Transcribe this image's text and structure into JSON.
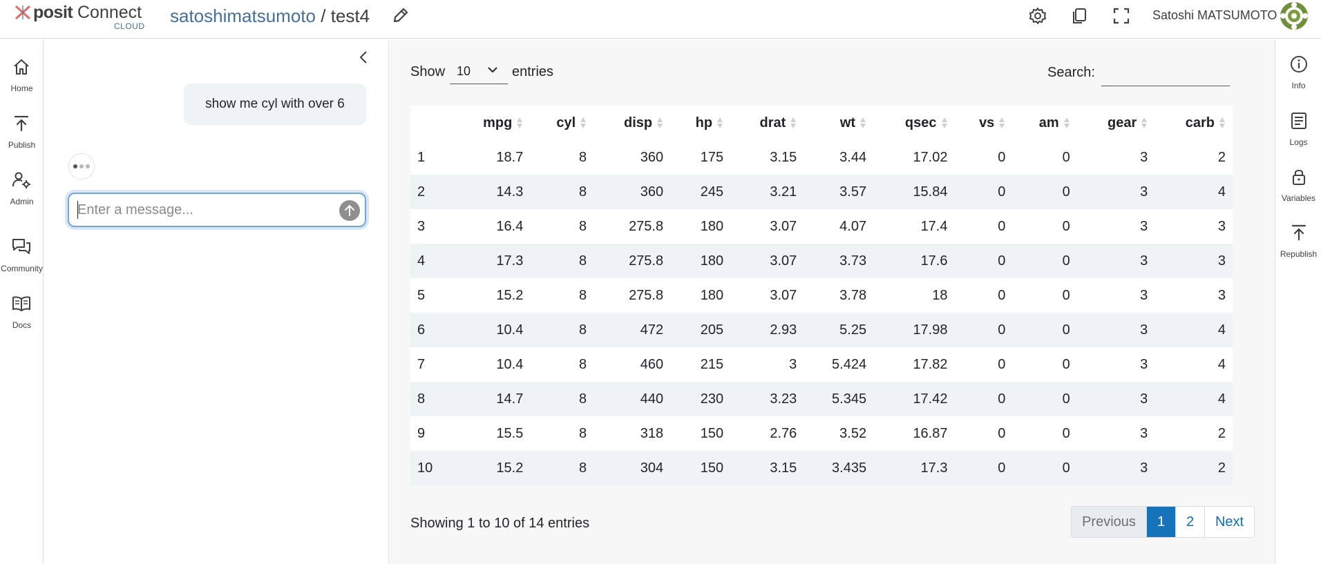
{
  "header": {
    "logo_brand": "posit",
    "logo_product": "Connect",
    "logo_sub": "CLOUD",
    "owner": "satoshimatsumoto",
    "separator": "/",
    "content_title": "test4",
    "user_name": "Satoshi MATSUMOTO"
  },
  "left_nav": {
    "items": [
      {
        "label": "Home",
        "icon": "home-icon"
      },
      {
        "label": "Publish",
        "icon": "publish-icon"
      },
      {
        "label": "Admin",
        "icon": "admin-icon"
      },
      {
        "label": "Community",
        "icon": "community-icon"
      },
      {
        "label": "Docs",
        "icon": "docs-icon"
      }
    ]
  },
  "chat": {
    "user_message": "show me cyl with over 6",
    "input_placeholder": "Enter a message..."
  },
  "table_controls": {
    "show_label": "Show",
    "page_length": "10",
    "entries_label": "entries",
    "search_label": "Search:",
    "search_value": ""
  },
  "table": {
    "columns": [
      "",
      "mpg",
      "cyl",
      "disp",
      "hp",
      "drat",
      "wt",
      "qsec",
      "vs",
      "am",
      "gear",
      "carb"
    ],
    "rows": [
      [
        "1",
        "18.7",
        "8",
        "360",
        "175",
        "3.15",
        "3.44",
        "17.02",
        "0",
        "0",
        "3",
        "2"
      ],
      [
        "2",
        "14.3",
        "8",
        "360",
        "245",
        "3.21",
        "3.57",
        "15.84",
        "0",
        "0",
        "3",
        "4"
      ],
      [
        "3",
        "16.4",
        "8",
        "275.8",
        "180",
        "3.07",
        "4.07",
        "17.4",
        "0",
        "0",
        "3",
        "3"
      ],
      [
        "4",
        "17.3",
        "8",
        "275.8",
        "180",
        "3.07",
        "3.73",
        "17.6",
        "0",
        "0",
        "3",
        "3"
      ],
      [
        "5",
        "15.2",
        "8",
        "275.8",
        "180",
        "3.07",
        "3.78",
        "18",
        "0",
        "0",
        "3",
        "3"
      ],
      [
        "6",
        "10.4",
        "8",
        "472",
        "205",
        "2.93",
        "5.25",
        "17.98",
        "0",
        "0",
        "3",
        "4"
      ],
      [
        "7",
        "10.4",
        "8",
        "460",
        "215",
        "3",
        "5.424",
        "17.82",
        "0",
        "0",
        "3",
        "4"
      ],
      [
        "8",
        "14.7",
        "8",
        "440",
        "230",
        "3.23",
        "5.345",
        "17.42",
        "0",
        "0",
        "3",
        "4"
      ],
      [
        "9",
        "15.5",
        "8",
        "318",
        "150",
        "2.76",
        "3.52",
        "16.87",
        "0",
        "0",
        "3",
        "2"
      ],
      [
        "10",
        "15.2",
        "8",
        "304",
        "150",
        "3.15",
        "3.435",
        "17.3",
        "0",
        "0",
        "3",
        "2"
      ]
    ]
  },
  "footer": {
    "info": "Showing 1 to 10 of 14 entries",
    "pager": {
      "previous": "Previous",
      "pages": [
        "1",
        "2"
      ],
      "current": "1",
      "next": "Next"
    }
  },
  "right_nav": {
    "items": [
      {
        "label": "Info",
        "icon": "info-icon"
      },
      {
        "label": "Logs",
        "icon": "logs-icon"
      },
      {
        "label": "Variables",
        "icon": "lock-icon"
      },
      {
        "label": "Republish",
        "icon": "republish-icon"
      }
    ]
  },
  "colors": {
    "accent": "#1672b9",
    "brand_blue": "#447099",
    "striped_row": "#eef3f6",
    "main_background": "#f7f7f7"
  }
}
